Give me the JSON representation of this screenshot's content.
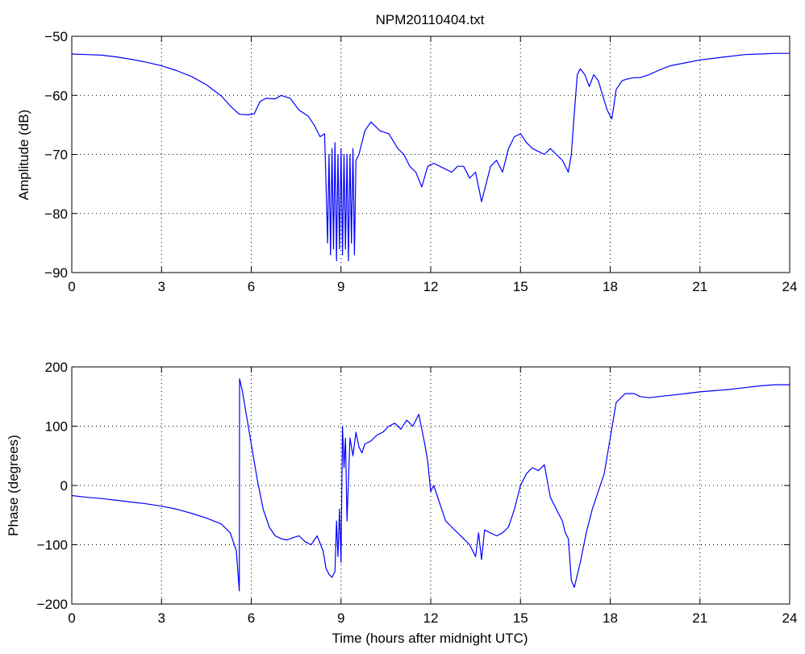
{
  "title": "NPM20110404.txt",
  "colors": {
    "line": "#0000ff",
    "axes": "#000000",
    "grid": "#000000",
    "background": "#ffffff"
  },
  "chart_data": [
    {
      "type": "line",
      "title": "NPM20110404.txt",
      "xlabel": "",
      "ylabel": "Amplitude (dB)",
      "xlim": [
        0,
        24
      ],
      "ylim": [
        -90,
        -50
      ],
      "xticks": [
        0,
        3,
        6,
        9,
        12,
        15,
        18,
        21,
        24
      ],
      "yticks": [
        -90,
        -80,
        -70,
        -60,
        -50
      ],
      "xtick_labels": [
        "0",
        "3",
        "6",
        "9",
        "12",
        "15",
        "18",
        "21",
        "24"
      ],
      "ytick_labels": [
        "−90",
        "−80",
        "−70",
        "−60",
        "−50"
      ],
      "grid": true,
      "series": [
        {
          "color": "#0000ff",
          "x": [
            0,
            0.5,
            1,
            1.5,
            2,
            2.5,
            3,
            3.5,
            4,
            4.5,
            5,
            5.3,
            5.6,
            5.9,
            6.1,
            6.3,
            6.5,
            6.8,
            7.0,
            7.3,
            7.6,
            7.9,
            8.1,
            8.3,
            8.45,
            8.5,
            8.55,
            8.6,
            8.65,
            8.7,
            8.75,
            8.8,
            8.85,
            8.9,
            8.95,
            9.0,
            9.05,
            9.1,
            9.15,
            9.2,
            9.25,
            9.3,
            9.35,
            9.4,
            9.45,
            9.5,
            9.6,
            9.8,
            10.0,
            10.3,
            10.6,
            10.9,
            11.1,
            11.3,
            11.5,
            11.7,
            11.9,
            12.1,
            12.3,
            12.5,
            12.7,
            12.9,
            13.1,
            13.3,
            13.5,
            13.7,
            13.8,
            14.0,
            14.2,
            14.4,
            14.6,
            14.8,
            15.0,
            15.2,
            15.4,
            15.6,
            15.8,
            16.0,
            16.2,
            16.4,
            16.6,
            16.7,
            16.8,
            16.9,
            17.0,
            17.15,
            17.3,
            17.45,
            17.6,
            17.75,
            17.9,
            18.05,
            18.1,
            18.2,
            18.4,
            18.6,
            18.8,
            19.0,
            19.3,
            19.6,
            20.0,
            20.5,
            21.0,
            21.5,
            22.0,
            22.5,
            23.0,
            23.5,
            24.0
          ],
          "y": [
            -53,
            -53.1,
            -53.2,
            -53.5,
            -53.9,
            -54.4,
            -55.0,
            -55.8,
            -56.8,
            -58.2,
            -60.1,
            -61.8,
            -63.2,
            -63.3,
            -63.1,
            -61,
            -60.5,
            -60.6,
            -60,
            -60.5,
            -62.5,
            -63.5,
            -65,
            -67,
            -66.5,
            -75,
            -85,
            -70,
            -87,
            -69,
            -86,
            -68,
            -88,
            -70,
            -86,
            -69,
            -87,
            -70,
            -86,
            -70,
            -88,
            -70,
            -85,
            -69,
            -87,
            -71,
            -70,
            -66,
            -64.5,
            -66,
            -66.5,
            -69,
            -70,
            -72,
            -73,
            -75.5,
            -72,
            -71.5,
            -72,
            -72.5,
            -73,
            -72,
            -72,
            -74,
            -73,
            -78,
            -76,
            -72,
            -71,
            -73,
            -69,
            -67,
            -66.5,
            -68,
            -69,
            -69.5,
            -70,
            -69,
            -70,
            -71,
            -73,
            -70,
            -63,
            -56.5,
            -55.5,
            -56.5,
            -58.5,
            -56.5,
            -57.5,
            -60,
            -62.5,
            -64,
            -62.5,
            -59,
            -57.5,
            -57.2,
            -57,
            -57,
            -56.5,
            -55.8,
            -55,
            -54.5,
            -54,
            -53.7,
            -53.4,
            -53.1,
            -53,
            -52.9,
            -52.9
          ]
        }
      ]
    },
    {
      "type": "line",
      "title": "",
      "xlabel": "Time (hours after midnight UTC)",
      "ylabel": "Phase (degrees)",
      "xlim": [
        0,
        24
      ],
      "ylim": [
        -200,
        200
      ],
      "xticks": [
        0,
        3,
        6,
        9,
        12,
        15,
        18,
        21,
        24
      ],
      "yticks": [
        -200,
        -100,
        0,
        100,
        200
      ],
      "xtick_labels": [
        "0",
        "3",
        "6",
        "9",
        "12",
        "15",
        "18",
        "21",
        "24"
      ],
      "ytick_labels": [
        "−200",
        "−100",
        "0",
        "100",
        "200"
      ],
      "grid": true,
      "series": [
        {
          "color": "#0000ff",
          "x": [
            0,
            0.5,
            1,
            1.5,
            2,
            2.5,
            3,
            3.5,
            4,
            4.5,
            5,
            5.3,
            5.5,
            5.6,
            5.61,
            5.7,
            5.8,
            6.0,
            6.2,
            6.4,
            6.6,
            6.8,
            7.0,
            7.2,
            7.4,
            7.6,
            7.8,
            8.0,
            8.2,
            8.4,
            8.5,
            8.6,
            8.7,
            8.8,
            8.85,
            8.9,
            8.95,
            9.0,
            9.05,
            9.1,
            9.15,
            9.2,
            9.3,
            9.4,
            9.5,
            9.6,
            9.7,
            9.8,
            10.0,
            10.2,
            10.4,
            10.6,
            10.8,
            11.0,
            11.2,
            11.4,
            11.6,
            11.7,
            11.8,
            11.9,
            12.0,
            12.1,
            12.3,
            12.5,
            12.7,
            12.9,
            13.1,
            13.3,
            13.5,
            13.6,
            13.7,
            13.8,
            14.0,
            14.2,
            14.4,
            14.6,
            14.8,
            15.0,
            15.2,
            15.4,
            15.6,
            15.8,
            16.0,
            16.2,
            16.4,
            16.5,
            16.6,
            16.7,
            16.8,
            17.0,
            17.2,
            17.4,
            17.6,
            17.8,
            18.0,
            18.2,
            18.5,
            18.8,
            19.0,
            19.3,
            19.6,
            20.0,
            20.5,
            21.0,
            21.5,
            22.0,
            22.5,
            23.0,
            23.5,
            24.0
          ],
          "y": [
            -17,
            -20,
            -22,
            -25,
            -28,
            -31,
            -35,
            -40,
            -47,
            -55,
            -65,
            -80,
            -110,
            -178,
            180,
            160,
            130,
            70,
            10,
            -40,
            -70,
            -85,
            -90,
            -92,
            -88,
            -85,
            -95,
            -100,
            -85,
            -110,
            -140,
            -150,
            -155,
            -145,
            -60,
            -120,
            -40,
            -130,
            100,
            30,
            80,
            -60,
            80,
            50,
            90,
            65,
            55,
            70,
            75,
            85,
            90,
            100,
            105,
            95,
            110,
            100,
            120,
            95,
            70,
            40,
            -10,
            0,
            -30,
            -60,
            -70,
            -80,
            -90,
            -100,
            -120,
            -80,
            -125,
            -75,
            -80,
            -85,
            -80,
            -70,
            -40,
            0,
            20,
            30,
            25,
            35,
            -20,
            -40,
            -60,
            -80,
            -90,
            -160,
            -172,
            -130,
            -80,
            -40,
            -10,
            20,
            80,
            140,
            155,
            155,
            150,
            148,
            150,
            152,
            155,
            158,
            160,
            162,
            165,
            168,
            170,
            170
          ]
        }
      ]
    }
  ]
}
